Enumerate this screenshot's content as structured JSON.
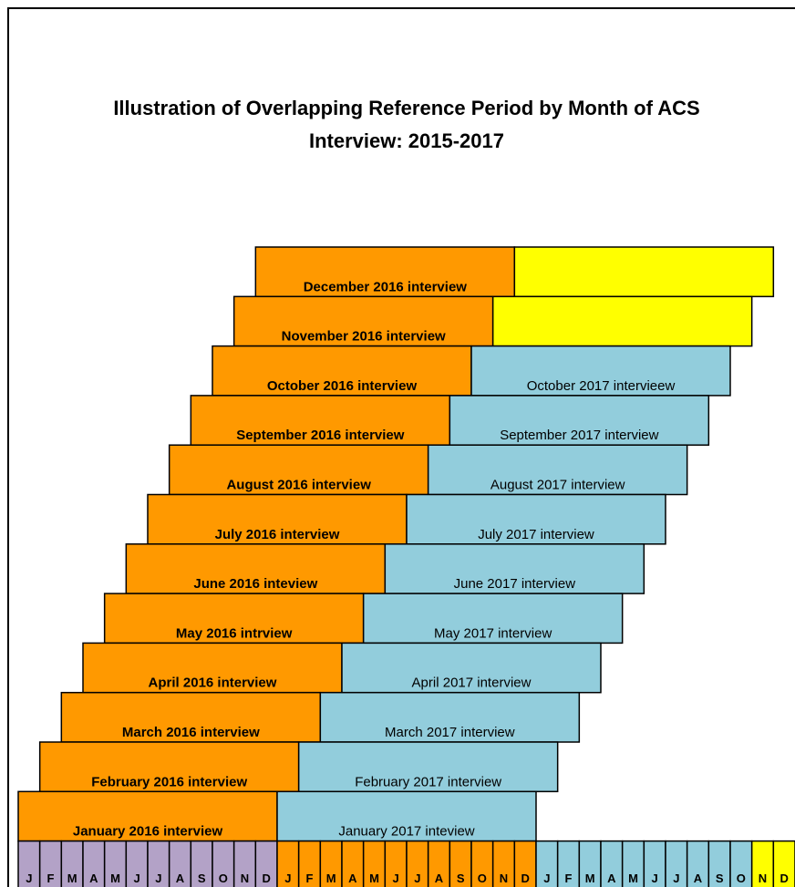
{
  "title": [
    "Illustration of Overlapping Reference Period by Month of ACS",
    "Interview: 2015-2017"
  ],
  "rows": [
    {
      "first": "December 2016 interview"
    },
    {
      "first": "November 2016 interview"
    },
    {
      "first": "October 2016 interview",
      "second": "October 2017 intervieew"
    },
    {
      "first": "September 2016 interview",
      "second": "September 2017 interview"
    },
    {
      "first": "August 2016 interview",
      "second": "August 2017 interview"
    },
    {
      "first": "July 2016 interview",
      "second": "July 2017 interview"
    },
    {
      "first": "June 2016 inteview",
      "second": "June 2017 interview"
    },
    {
      "first": "May 2016 intrview",
      "second": "May 2017 interview"
    },
    {
      "first": "April 2016 interview",
      "second": "April 2017 interview"
    },
    {
      "first": "March 2016 interview",
      "second": "March 2017 interview"
    },
    {
      "first": "February 2016 interview",
      "second": "February 2017 interview"
    },
    {
      "first": "January 2016 interview",
      "second": "January 2017 inteview"
    }
  ],
  "months": [
    "J",
    "F",
    "M",
    "A",
    "M",
    "J",
    "J",
    "A",
    "S",
    "O",
    "N",
    "D"
  ]
}
